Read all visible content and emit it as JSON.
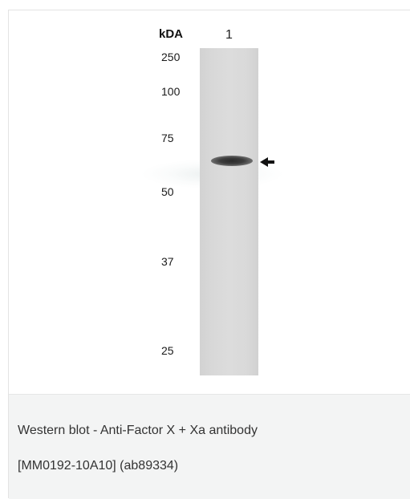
{
  "figure": {
    "axis_label": "kDA",
    "lane_label": "1",
    "markers": [
      "250",
      "100",
      "75",
      "50",
      "37",
      "25"
    ]
  },
  "caption": {
    "line1": "Western blot - Anti-Factor X + Xa antibody",
    "line2": "[MM0192-10A10] (ab89334)"
  },
  "colors": {
    "caption_bg": "#f3f4f4",
    "lane": "#d8d8d8",
    "band": "#333333"
  }
}
